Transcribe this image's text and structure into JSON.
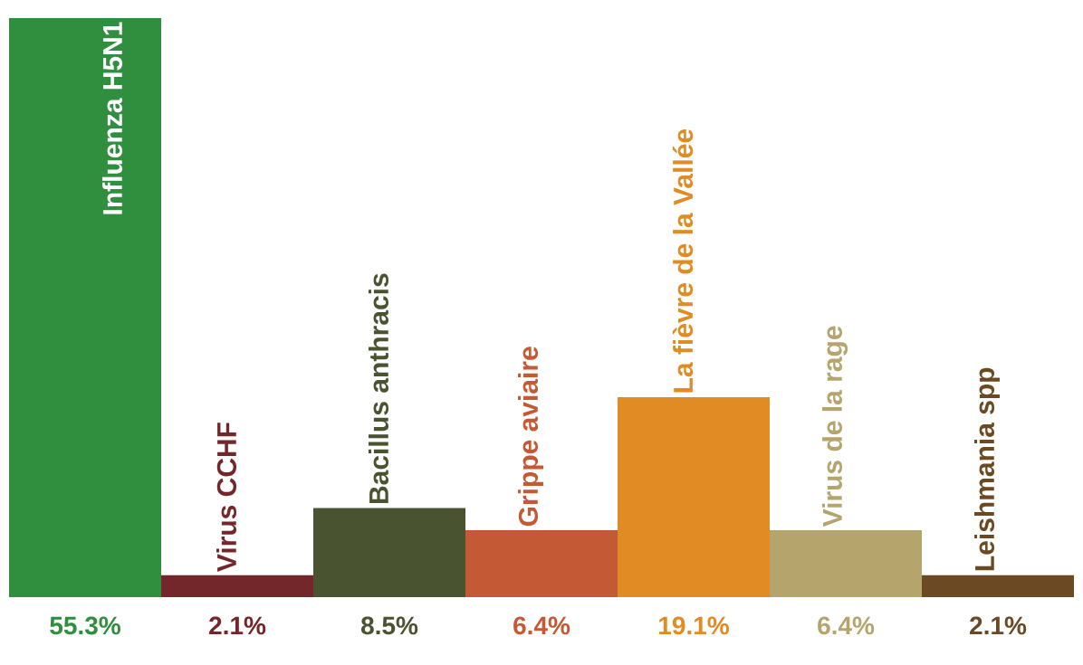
{
  "chart_data": {
    "type": "bar",
    "categories": [
      "Influenza H5N1",
      "Virus CCHF",
      "Bacillus anthracis",
      "Grippe aviaire",
      "La fièvre de la Vallée",
      "Virus de la rage",
      "Leishmania spp"
    ],
    "values": [
      55.3,
      2.1,
      8.5,
      6.4,
      19.1,
      6.4,
      2.1
    ],
    "value_labels": [
      "55.3%",
      "2.1%",
      "8.5%",
      "6.4%",
      "19.1%",
      "6.4%",
      "2.1%"
    ],
    "colors": [
      "#2f8f3e",
      "#74272a",
      "#4a5330",
      "#c45a35",
      "#e08b24",
      "#b5a46c",
      "#6b4a23"
    ]
  }
}
